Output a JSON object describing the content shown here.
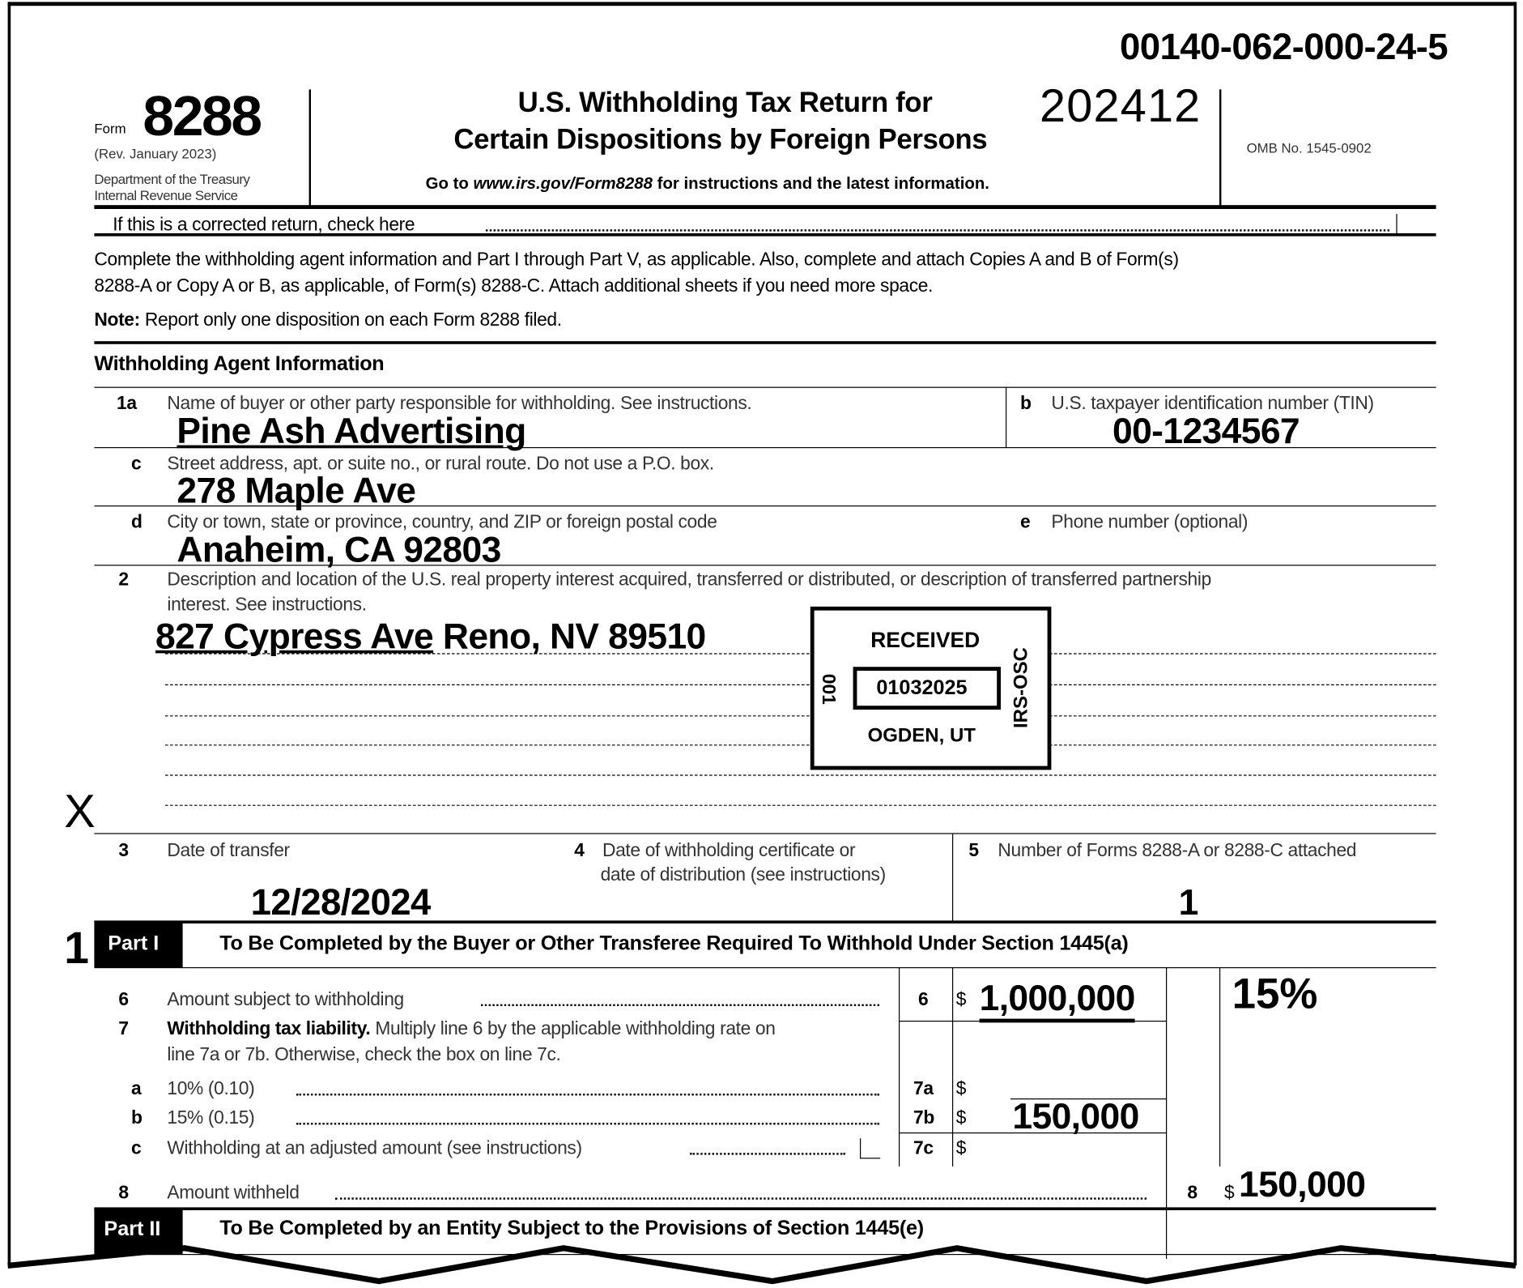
{
  "document_id": "00140-062-000-24-5",
  "header": {
    "form_word": "Form",
    "form_number": "8288",
    "revision": "(Rev. January 2023)",
    "department": "Department of the Treasury",
    "agency": "Internal Revenue Service",
    "title_line1": "U.S. Withholding Tax Return for",
    "title_line2": "Certain Dispositions by Foreign Persons",
    "tax_period": "202412",
    "goto_prefix": "Go to ",
    "goto_url": "www.irs.gov/Form8288",
    "goto_suffix": " for instructions and the latest information.",
    "omb": "OMB No. 1545-0902"
  },
  "corrected_return": {
    "label": "If this is a corrected return, check here",
    "checked": false
  },
  "instructions": {
    "line1": "Complete the withholding agent information and Part I through Part V, as applicable. Also, complete and attach Copies A and B of Form(s)",
    "line2": "8288-A or Copy A or B, as applicable, of Form(s) 8288-C. Attach additional sheets if you need more space.",
    "note_label": "Note:",
    "note_text": " Report only one disposition on each Form 8288 filed."
  },
  "agent": {
    "section_title": "Withholding Agent Information",
    "l1a_num": "1a",
    "l1a_label": "Name of buyer or other party responsible for withholding. See instructions.",
    "l1a_value": "Pine Ash Advertising",
    "lb_num": "b",
    "lb_label": "U.S. taxpayer identification number (TIN)",
    "lb_value": "00-1234567",
    "lc_num": "c",
    "lc_label": "Street address, apt. or suite no., or rural route. Do not use a P.O. box.",
    "lc_value": "278 Maple Ave",
    "ld_num": "d",
    "ld_label": "City or town, state or province, country, and ZIP or foreign postal code",
    "ld_value": "Anaheim, CA 92803",
    "le_num": "e",
    "le_label": "Phone number (optional)",
    "le_value": ""
  },
  "line2": {
    "num": "2",
    "label1": "Description and location of the U.S. real property interest acquired, transferred or distributed, or description of transferred partnership",
    "label2": "interest. See instructions.",
    "value_a": "827 Cypress Ave",
    "value_b": " Reno, NV 89510"
  },
  "stamp": {
    "received": "RECEIVED",
    "date": "01032025",
    "location": "OGDEN, UT",
    "left_code": "001",
    "right_code": "IRS-OSC"
  },
  "margin_mark_x": "X",
  "row3": {
    "l3_num": "3",
    "l3_label": "Date of transfer",
    "l3_value": "12/28/2024",
    "l4_num": "4",
    "l4_label1": "Date of withholding certificate or",
    "l4_label2": "date of distribution (see instructions)",
    "l4_value": "",
    "l5_num": "5",
    "l5_label": "Number of Forms 8288-A or 8288-C attached",
    "l5_value": "1"
  },
  "part1": {
    "margin_mark": "1",
    "badge": "Part I",
    "title": "To Be Completed by the Buyer or Other Transferee Required To Withhold Under Section 1445(a)",
    "rate_note": "15%",
    "l6": {
      "num": "6",
      "label": "Amount subject to withholding",
      "box": "6",
      "currency": "$",
      "value": "1,000,000"
    },
    "l7": {
      "num": "7",
      "label_bold": "Withholding tax liability.",
      "label_rest": " Multiply line 6 by the applicable withholding rate on",
      "label2": "line 7a or 7b. Otherwise, check the box on line 7c."
    },
    "l7a": {
      "num": "a",
      "label": "10% (0.10)",
      "box": "7a",
      "currency": "$",
      "value": ""
    },
    "l7b": {
      "num": "b",
      "label": "15% (0.15)",
      "box": "7b",
      "currency": "$",
      "value": "150,000"
    },
    "l7c": {
      "num": "c",
      "label": "Withholding at an adjusted amount (see instructions)",
      "box": "7c",
      "currency": "$",
      "value": "",
      "checked": false
    },
    "l8": {
      "num": "8",
      "label": "Amount withheld",
      "box": "8",
      "currency": "$",
      "value": "150,000"
    }
  },
  "part2": {
    "badge": "Part II",
    "title": "To Be Completed by an Entity Subject to the Provisions of Section 1445(e)"
  }
}
